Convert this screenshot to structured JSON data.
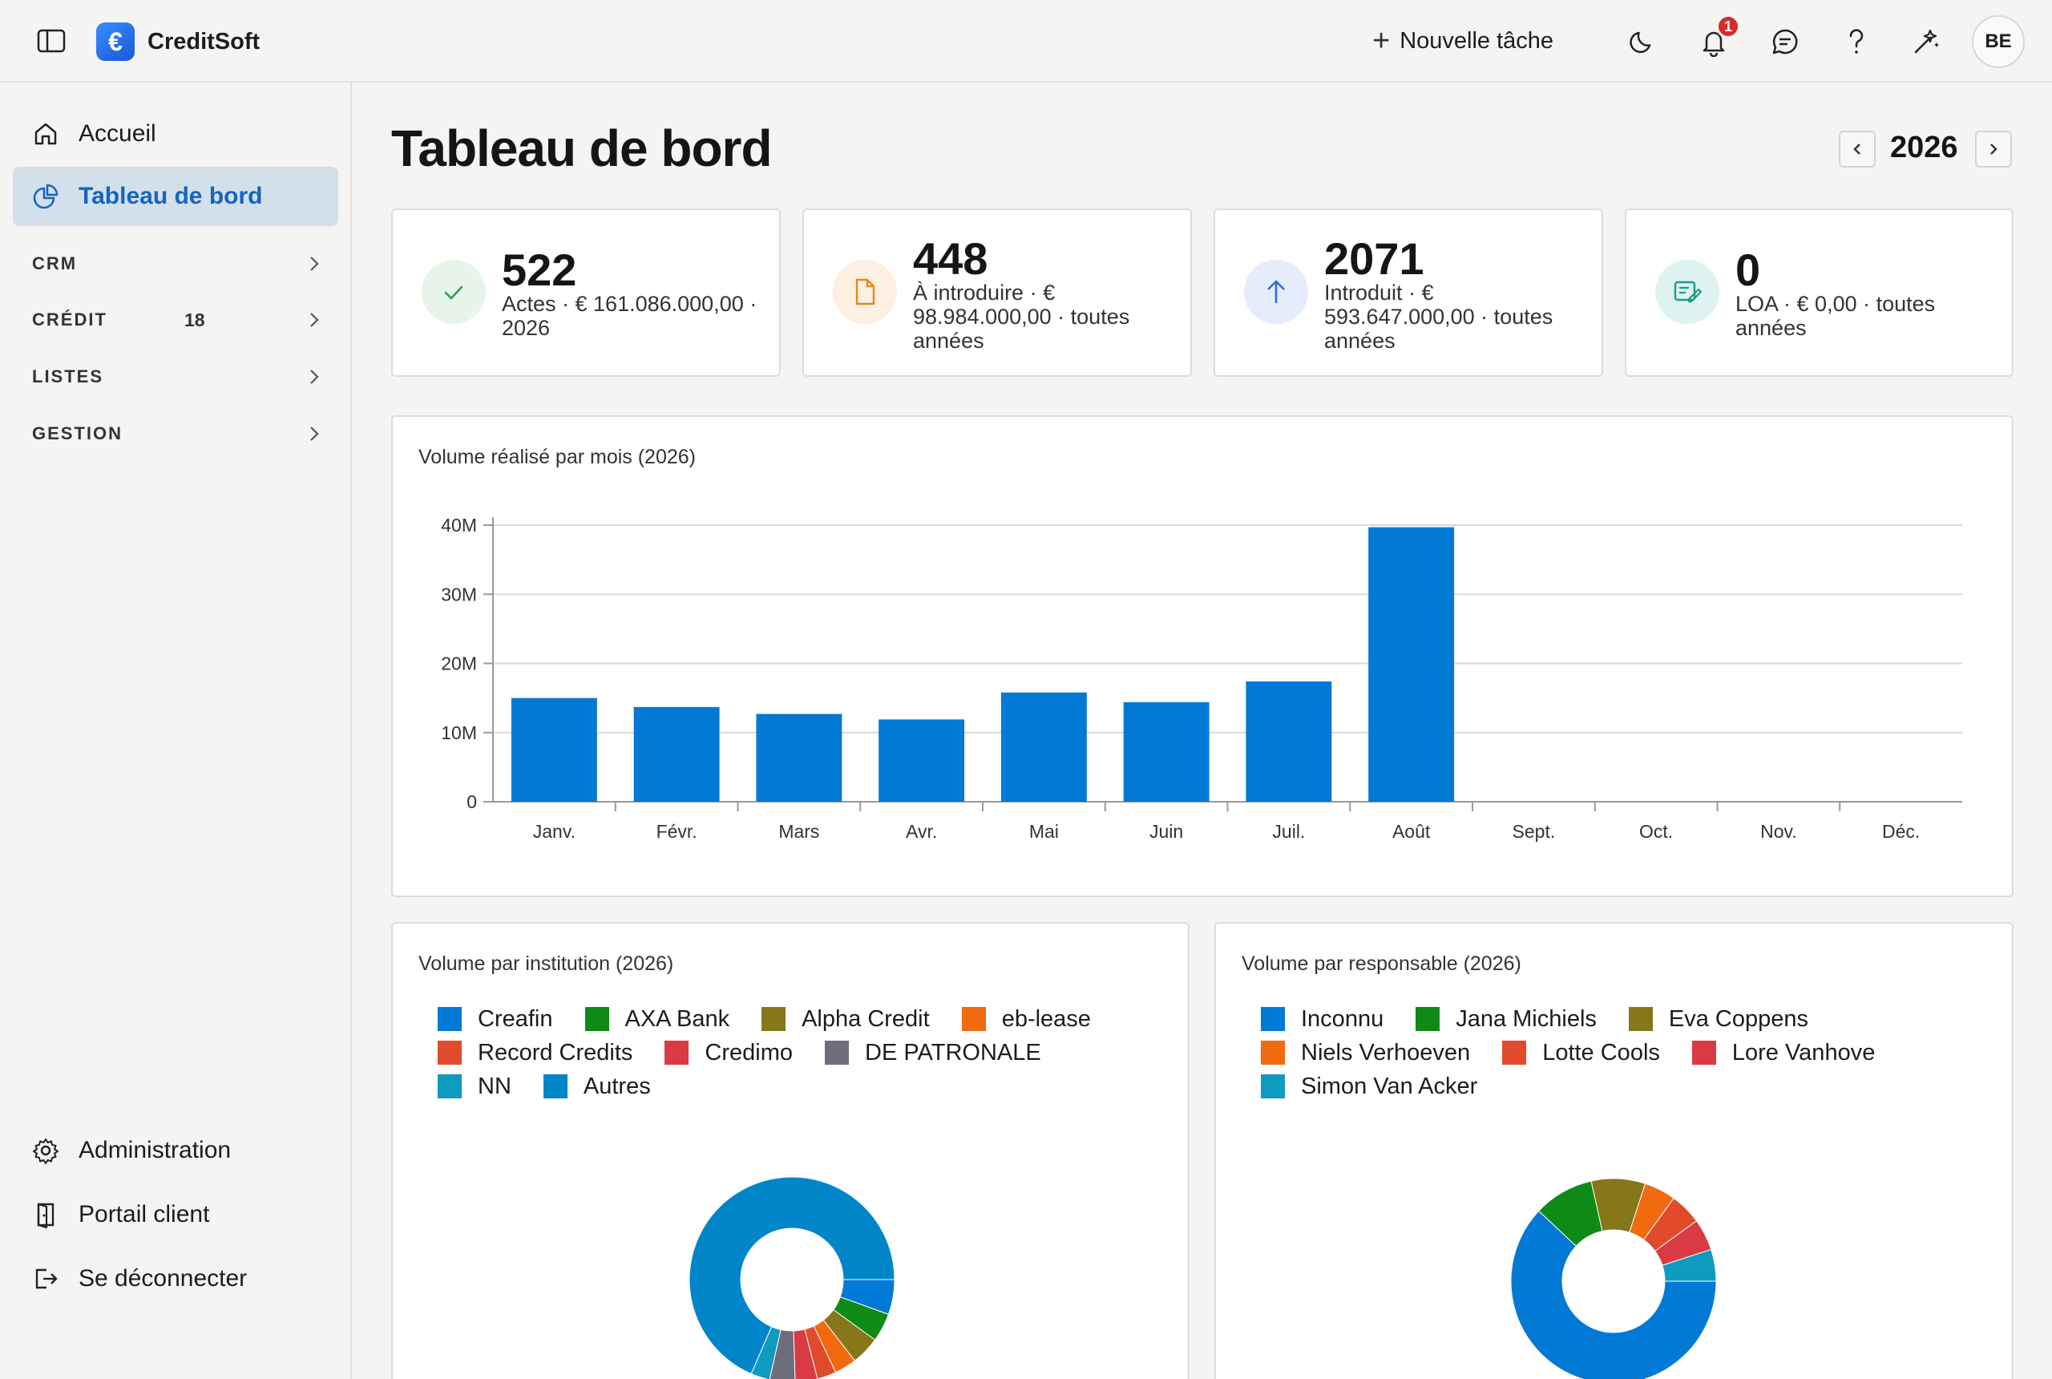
{
  "app": {
    "brand": "CreditSoft",
    "logo_symbol": "€",
    "avatar_initials": "BE",
    "notification_count": "1"
  },
  "header": {
    "new_task_label": "Nouvelle tâche"
  },
  "sidebar": {
    "items": [
      {
        "label": "Accueil",
        "icon": "home-icon"
      },
      {
        "label": "Tableau de bord",
        "icon": "pie-chart-icon",
        "active": true
      }
    ],
    "sections": [
      {
        "label": "CRM",
        "count": ""
      },
      {
        "label": "CRÉDIT",
        "count": "18"
      },
      {
        "label": "LISTES",
        "count": ""
      },
      {
        "label": "GESTION",
        "count": ""
      }
    ],
    "footer": [
      {
        "label": "Administration",
        "icon": "gear-icon"
      },
      {
        "label": "Portail client",
        "icon": "door-icon"
      },
      {
        "label": "Se déconnecter",
        "icon": "logout-icon"
      }
    ]
  },
  "main": {
    "title": "Tableau de bord",
    "year": "2026",
    "stats": [
      {
        "value": "522",
        "desc": "Actes · € 161.086.000,00 · 2026",
        "icon": "check-icon",
        "color": "#2e9e4f",
        "bg": "#e6f4ea"
      },
      {
        "value": "448",
        "desc": "À introduire · € 98.984.000,00 · toutes années",
        "icon": "document-icon",
        "color": "#e08a1e",
        "bg": "#fdf0e2"
      },
      {
        "value": "2071",
        "desc": "Introduit · € 593.647.000,00 · toutes années",
        "icon": "arrow-up-icon",
        "color": "#2f6fd8",
        "bg": "#e4ecfb"
      },
      {
        "value": "0",
        "desc": "LOA · € 0,00 · toutes années",
        "icon": "edit-document-icon",
        "color": "#1c9a8a",
        "bg": "#def3f0"
      }
    ]
  },
  "chart_data": [
    {
      "type": "bar",
      "title": "Volume réalisé par mois (2026)",
      "categories": [
        "Janv.",
        "Févr.",
        "Mars",
        "Avr.",
        "Mai",
        "Juin",
        "Juil.",
        "Août",
        "Sept.",
        "Oct.",
        "Nov.",
        "Déc."
      ],
      "values": [
        15000000,
        13700000,
        12700000,
        11900000,
        15800000,
        14400000,
        17400000,
        39700000,
        0,
        0,
        0,
        0
      ],
      "ylim": [
        0,
        40000000
      ],
      "yticks": [
        "0",
        "10M",
        "20M",
        "30M",
        "40M"
      ],
      "grid": true,
      "color": "#0379d6"
    },
    {
      "type": "pie",
      "title": "Volume par institution (2026)",
      "labels": [
        "Creafin",
        "AXA Bank",
        "Alpha Credit",
        "eb-lease",
        "Record Credits",
        "Credimo",
        "DE PATRONALE",
        "NN",
        "Autres"
      ],
      "colors": [
        "#0379d6",
        "#0d8b16",
        "#85771a",
        "#f26a10",
        "#e14b2b",
        "#d93a43",
        "#6d6d7b",
        "#0e9bbf",
        "#0085c8"
      ],
      "values": [
        5.5,
        4.5,
        4.5,
        3.5,
        3,
        3.5,
        4,
        3,
        68.5
      ]
    },
    {
      "type": "pie",
      "title": "Volume par responsable (2026)",
      "labels": [
        "Inconnu",
        "Jana Michiels",
        "Eva Coppens",
        "Niels Verhoeven",
        "Lotte Cools",
        "Lore Vanhove",
        "Simon Van Acker"
      ],
      "colors": [
        "#0379d6",
        "#0d8b16",
        "#85771a",
        "#f26a10",
        "#e14b2b",
        "#d93a43",
        "#0e9bbf"
      ],
      "values": [
        62,
        9.5,
        8.5,
        5,
        5,
        5,
        5
      ]
    }
  ]
}
